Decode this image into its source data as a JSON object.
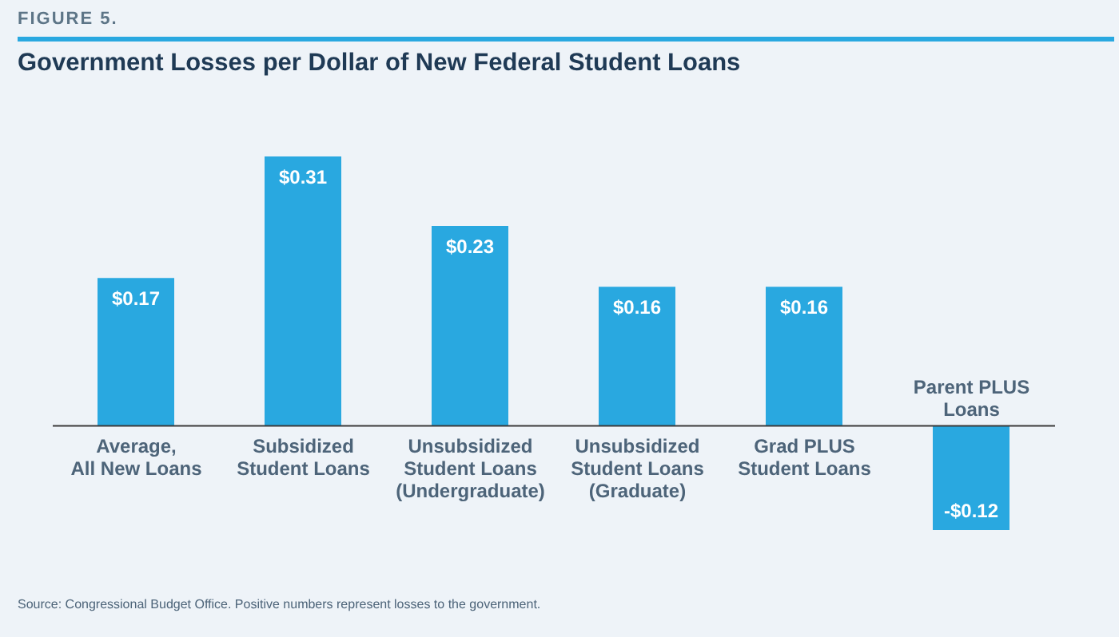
{
  "chart_data": {
    "type": "bar",
    "subtitle": "FIGURE 5.",
    "title": "Government Losses per Dollar of New Federal Student Loans",
    "categories": [
      "Average,\nAll New Loans",
      "Subsidized\nStudent Loans",
      "Unsubsidized\nStudent Loans\n(Undergraduate)",
      "Unsubsidized\nStudent Loans\n(Graduate)",
      "Grad PLUS\nStudent Loans",
      "Parent PLUS\nLoans"
    ],
    "values": [
      0.17,
      0.31,
      0.23,
      0.16,
      0.16,
      -0.12
    ],
    "value_labels": [
      "$0.17",
      "$0.31",
      "$0.23",
      "$0.16",
      "$0.16",
      "-$0.12"
    ],
    "color": "#29a8e0",
    "annotations": [
      "Source: Congressional Budget Office. Positive numbers represent losses to the government."
    ]
  }
}
